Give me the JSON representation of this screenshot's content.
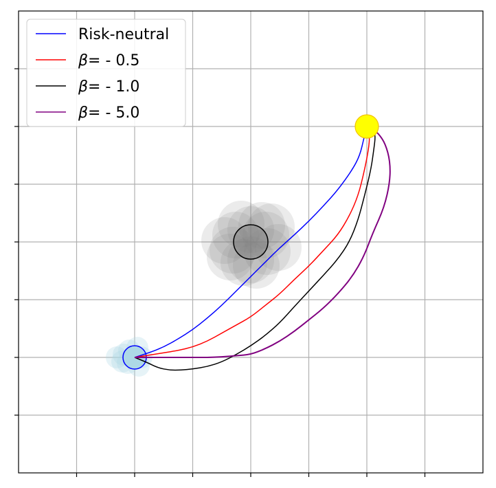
{
  "chart_data": {
    "type": "line",
    "title": "",
    "xlabel": "",
    "ylabel": "",
    "xlim": [
      -4,
      4
    ],
    "ylim": [
      -4,
      4
    ],
    "grid": true,
    "tick_labels_shown": false,
    "legend_placement": "top-left",
    "start": {
      "x": -2,
      "y": -2,
      "color": "#add8e6",
      "edge": "#0000ff"
    },
    "goal": {
      "x": 2,
      "y": 2,
      "color": "#ffff00",
      "edge": "#f2c200"
    },
    "obstacle": {
      "x": 0,
      "y": 0,
      "color": "#808080",
      "edge": "#000000"
    },
    "series": [
      {
        "name": "Risk-neutral",
        "color": "#0000ff",
        "points": [
          [
            -2,
            -2
          ],
          [
            -1.75,
            -1.92
          ],
          [
            -1.5,
            -1.82
          ],
          [
            -1.25,
            -1.68
          ],
          [
            -1,
            -1.52
          ],
          [
            -0.75,
            -1.32
          ],
          [
            -0.5,
            -1.1
          ],
          [
            -0.25,
            -0.85
          ],
          [
            0,
            -0.6
          ],
          [
            0.25,
            -0.35
          ],
          [
            0.5,
            -0.1
          ],
          [
            0.75,
            0.12
          ],
          [
            1,
            0.36
          ],
          [
            1.25,
            0.62
          ],
          [
            1.5,
            0.9
          ],
          [
            1.75,
            1.25
          ],
          [
            1.88,
            1.5
          ],
          [
            1.95,
            1.8
          ],
          [
            2,
            2
          ]
        ]
      },
      {
        "name": "β= - 0.5",
        "label_prefix": "β",
        "label_suffix": "= - 0.5",
        "color": "#ff0000",
        "points": [
          [
            -2,
            -2
          ],
          [
            -1.75,
            -1.96
          ],
          [
            -1.5,
            -1.92
          ],
          [
            -1.25,
            -1.88
          ],
          [
            -1,
            -1.82
          ],
          [
            -0.75,
            -1.72
          ],
          [
            -0.5,
            -1.58
          ],
          [
            -0.25,
            -1.44
          ],
          [
            0,
            -1.3
          ],
          [
            0.25,
            -1.1
          ],
          [
            0.5,
            -0.9
          ],
          [
            0.75,
            -0.65
          ],
          [
            1,
            -0.42
          ],
          [
            1.25,
            -0.15
          ],
          [
            1.5,
            0.12
          ],
          [
            1.7,
            0.45
          ],
          [
            1.85,
            0.8
          ],
          [
            1.95,
            1.2
          ],
          [
            2.03,
            1.6
          ],
          [
            2.05,
            1.85
          ],
          [
            2,
            2
          ]
        ]
      },
      {
        "name": "β= - 1.0",
        "label_prefix": "β",
        "label_suffix": "= - 1.0",
        "color": "#000000",
        "points": [
          [
            -2,
            -2
          ],
          [
            -1.8,
            -2.08
          ],
          [
            -1.6,
            -2.18
          ],
          [
            -1.4,
            -2.22
          ],
          [
            -1.2,
            -2.22
          ],
          [
            -1,
            -2.2
          ],
          [
            -0.75,
            -2.16
          ],
          [
            -0.5,
            -2.08
          ],
          [
            -0.25,
            -1.95
          ],
          [
            0,
            -1.8
          ],
          [
            0.25,
            -1.62
          ],
          [
            0.5,
            -1.4
          ],
          [
            0.75,
            -1.12
          ],
          [
            1,
            -0.85
          ],
          [
            1.25,
            -0.58
          ],
          [
            1.5,
            -0.3
          ],
          [
            1.7,
            0
          ],
          [
            1.85,
            0.38
          ],
          [
            1.96,
            0.8
          ],
          [
            2.07,
            1.25
          ],
          [
            2.12,
            1.6
          ],
          [
            2.15,
            1.85
          ],
          [
            2.1,
            1.95
          ],
          [
            2,
            2
          ]
        ]
      },
      {
        "name": "β= - 5.0",
        "label_prefix": "β",
        "label_suffix": "= - 5.0",
        "color": "#800080",
        "points": [
          [
            -2,
            -2
          ],
          [
            -1.75,
            -2
          ],
          [
            -1.5,
            -2
          ],
          [
            -1.25,
            -2
          ],
          [
            -1,
            -2
          ],
          [
            -0.75,
            -2
          ],
          [
            -0.5,
            -1.99
          ],
          [
            -0.25,
            -1.97
          ],
          [
            0,
            -1.95
          ],
          [
            0.25,
            -1.85
          ],
          [
            0.5,
            -1.72
          ],
          [
            0.75,
            -1.55
          ],
          [
            1,
            -1.35
          ],
          [
            1.25,
            -1.15
          ],
          [
            1.5,
            -0.9
          ],
          [
            1.75,
            -0.6
          ],
          [
            1.95,
            -0.25
          ],
          [
            2.1,
            0.15
          ],
          [
            2.3,
            0.6
          ],
          [
            2.4,
            1.05
          ],
          [
            2.4,
            1.4
          ],
          [
            2.32,
            1.7
          ],
          [
            2.2,
            1.88
          ],
          [
            2.1,
            1.95
          ],
          [
            2,
            2
          ]
        ]
      }
    ]
  }
}
